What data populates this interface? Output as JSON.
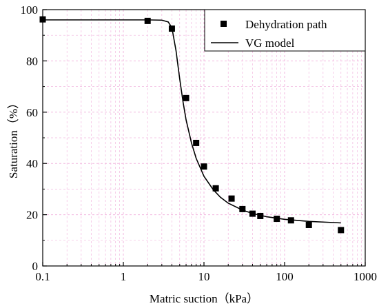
{
  "chart_data": {
    "type": "scatter",
    "xlabel": "Matric suction（kPa）",
    "ylabel": "Saturation（%）",
    "x_scale": "log",
    "xlim": [
      0.1,
      1000
    ],
    "ylim": [
      0,
      100
    ],
    "x_ticks": [
      "0.1",
      "1",
      "10",
      "100",
      "1000"
    ],
    "y_ticks": [
      "0",
      "20",
      "40",
      "60",
      "80",
      "100"
    ],
    "grid": true,
    "legend_position": "top-right",
    "series": [
      {
        "name": "Dehydration path",
        "kind": "scatter",
        "marker": "square",
        "color": "#000000",
        "points": [
          {
            "x": 0.1,
            "y": 96.2
          },
          {
            "x": 2,
            "y": 95.6
          },
          {
            "x": 4,
            "y": 92.6
          },
          {
            "x": 6,
            "y": 65.5
          },
          {
            "x": 8,
            "y": 48.0
          },
          {
            "x": 10,
            "y": 38.8
          },
          {
            "x": 14,
            "y": 30.3
          },
          {
            "x": 22,
            "y": 26.3
          },
          {
            "x": 30,
            "y": 22.2
          },
          {
            "x": 40,
            "y": 20.4
          },
          {
            "x": 50,
            "y": 19.5
          },
          {
            "x": 80,
            "y": 18.4
          },
          {
            "x": 120,
            "y": 17.8
          },
          {
            "x": 200,
            "y": 16.0
          },
          {
            "x": 500,
            "y": 14.0
          }
        ]
      },
      {
        "name": "VG model",
        "kind": "line",
        "color": "#000000",
        "points": [
          {
            "x": 0.1,
            "y": 96.0
          },
          {
            "x": 2,
            "y": 96.0
          },
          {
            "x": 3,
            "y": 95.9
          },
          {
            "x": 3.6,
            "y": 95.2
          },
          {
            "x": 4,
            "y": 93.0
          },
          {
            "x": 4.5,
            "y": 84.0
          },
          {
            "x": 5,
            "y": 73.0
          },
          {
            "x": 5.5,
            "y": 64.0
          },
          {
            "x": 6,
            "y": 57.0
          },
          {
            "x": 7,
            "y": 48.0
          },
          {
            "x": 8,
            "y": 42.0
          },
          {
            "x": 10,
            "y": 35.0
          },
          {
            "x": 13,
            "y": 29.8
          },
          {
            "x": 16,
            "y": 26.8
          },
          {
            "x": 20,
            "y": 24.5
          },
          {
            "x": 30,
            "y": 21.8
          },
          {
            "x": 40,
            "y": 20.5
          },
          {
            "x": 60,
            "y": 19.2
          },
          {
            "x": 100,
            "y": 18.2
          },
          {
            "x": 200,
            "y": 17.4
          },
          {
            "x": 500,
            "y": 16.8
          }
        ]
      }
    ]
  }
}
